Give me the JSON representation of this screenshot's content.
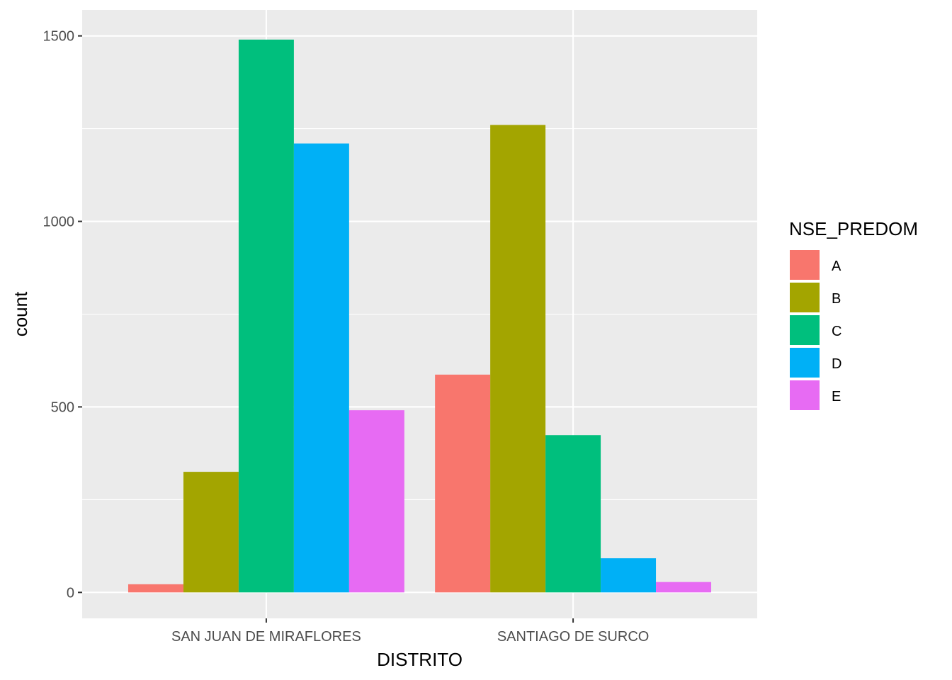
{
  "chart_data": {
    "type": "bar",
    "xlabel": "DISTRITO",
    "ylabel": "count",
    "categories": [
      "SAN JUAN DE MIRAFLORES",
      "SANTIAGO DE SURCO"
    ],
    "ylim": [
      -70,
      1570
    ],
    "yticks": [
      0,
      500,
      1000,
      1500
    ],
    "grid": true,
    "legend": {
      "title": "NSE_PREDOM",
      "position": "right"
    },
    "series": [
      {
        "name": "A",
        "color": "#F8766D",
        "values": [
          22,
          587
        ]
      },
      {
        "name": "B",
        "color": "#A3A500",
        "values": [
          325,
          1260
        ]
      },
      {
        "name": "C",
        "color": "#00BF7D",
        "values": [
          1490,
          424
        ]
      },
      {
        "name": "D",
        "color": "#00B0F6",
        "values": [
          1210,
          92
        ]
      },
      {
        "name": "E",
        "color": "#E76BF3",
        "values": [
          491,
          28
        ]
      }
    ],
    "colors": {
      "panel": "#EBEBEB",
      "grid": "#FFFFFF",
      "tick": "#333333"
    }
  }
}
